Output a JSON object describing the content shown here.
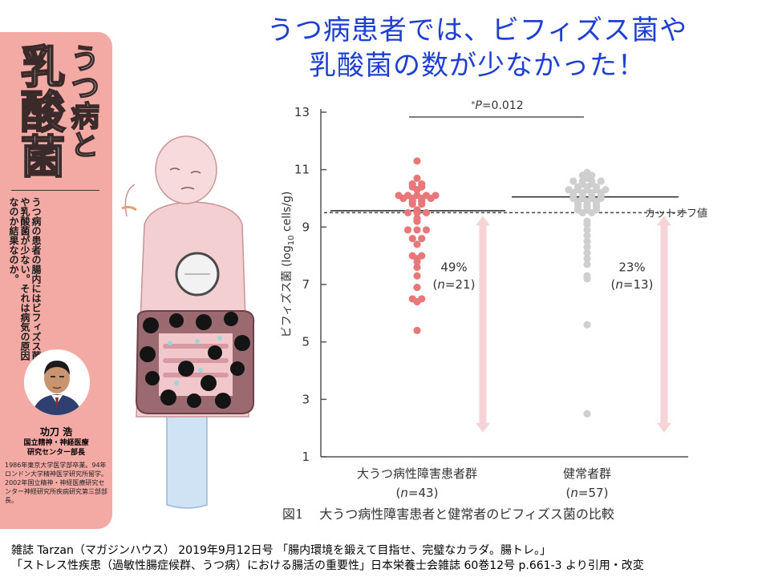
{
  "headline": {
    "line1": "うつ病患者では、ビフィズス菌や",
    "line2": "乳酸菌の数が少なかった！"
  },
  "magazine": {
    "title_small": "うつ病と",
    "title_large": "乳酸菌",
    "body": "うつ病の患者の腸内にはビフィズス菌や乳酸菌が少ない。それは病気の原因なのか結果なのか。",
    "author_name": "功刀 浩",
    "author_affiliation_1": "国立精神・神経医療",
    "author_affiliation_2": "研究センター部長",
    "author_bio": "1986年東京大学医学部卒業。94年ロンドン大学精神医学研究所留学。2002年国立精神・神経医療研究センター神経研究所疾病研究第三部部長。"
  },
  "figure_caption": {
    "number": "図1",
    "text": "大うつ病性障害患者と健常者のビフィズス菌の比較"
  },
  "footer": {
    "line1": "雑誌 Tarzan（マガジンハウス） 2019年9月12日号 「腸内環境を鍛えて目指せ、完璧なカラダ。腸トレ。」",
    "line2": "「ストレス性疾患（過敏性腸症候群、うつ病）における腸活の重要性」日本栄養士会雑誌 60巻12号 p.661-3 より引用・改変"
  },
  "chart_data": {
    "type": "scatter",
    "subtype": "dot-plot",
    "ylabel_prefix": "ビフィズス菌",
    "ylabel_unit": "(log",
    "ylabel_sub": "10",
    "ylabel_tail": " cells/g)",
    "yticks": [
      1,
      3,
      5,
      7,
      9,
      11,
      13
    ],
    "ylim": [
      1,
      13
    ],
    "grid": false,
    "significance": {
      "label": "*P=0.012",
      "star": "*",
      "p": "P",
      "rest": "=0.012"
    },
    "cutoff": {
      "value": 9.5,
      "label": "カットオフ値"
    },
    "colors": {
      "patients": "#e8777a",
      "healthy": "#cfcfcf",
      "arrow": "#f6d3d6"
    },
    "groups": [
      {
        "name": "大うつ病性障害患者群",
        "n_label": "(n=43)",
        "n_italic": "n",
        "n_value": "=43",
        "median": 9.57,
        "below_cutoff_pct": "49%",
        "below_cutoff_n": "(n=21)",
        "below_cutoff_n_value": "=21",
        "values": [
          11.3,
          10.7,
          10.5,
          10.5,
          10.4,
          10.4,
          10.3,
          10.1,
          10.1,
          10.1,
          10.1,
          10.1,
          10.0,
          10.0,
          10.0,
          10.0,
          9.9,
          9.9,
          9.8,
          9.8,
          9.6,
          9.5,
          9.5,
          9.5,
          9.3,
          9.2,
          8.9,
          8.9,
          8.9,
          8.6,
          8.6,
          8.4,
          8.0,
          8.0,
          7.9,
          7.8,
          7.6,
          7.3,
          6.9,
          6.5,
          6.5,
          6.4,
          5.4
        ]
      },
      {
        "name": "健常者群",
        "n_label": "(n=57)",
        "n_italic": "n",
        "n_value": "=57",
        "median": 10.05,
        "below_cutoff_pct": "23%",
        "below_cutoff_n": "(n=13)",
        "below_cutoff_n_value": "=13",
        "values": [
          10.9,
          10.8,
          10.8,
          10.7,
          10.6,
          10.6,
          10.6,
          10.6,
          10.5,
          10.5,
          10.4,
          10.4,
          10.4,
          10.3,
          10.3,
          10.3,
          10.3,
          10.3,
          10.2,
          10.2,
          10.2,
          10.2,
          10.1,
          10.1,
          10.1,
          10.1,
          10.0,
          10.0,
          10.0,
          10.0,
          9.9,
          9.9,
          9.9,
          9.8,
          9.8,
          9.8,
          9.7,
          9.7,
          9.7,
          9.6,
          9.6,
          9.6,
          9.5,
          9.5,
          9.2,
          9.1,
          8.9,
          8.7,
          8.5,
          8.3,
          8.1,
          7.9,
          7.7,
          7.3,
          7.2,
          5.6,
          2.5
        ]
      }
    ]
  }
}
